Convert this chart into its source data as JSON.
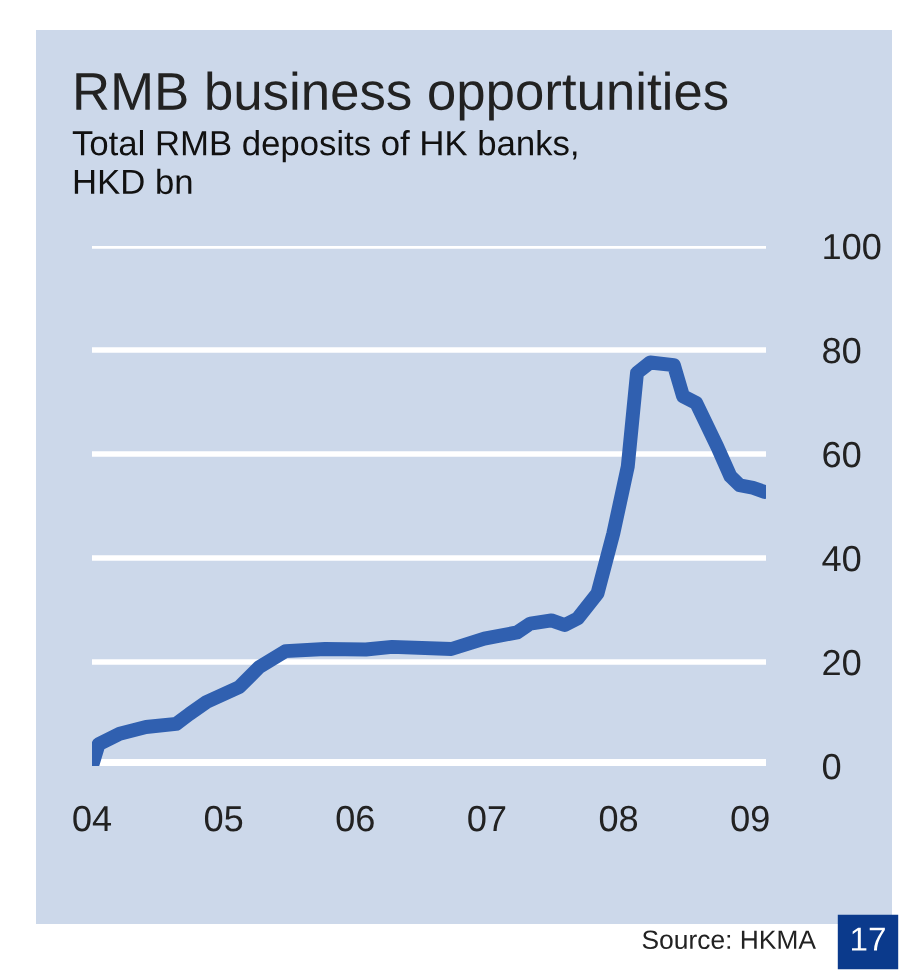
{
  "chart_data": {
    "type": "line",
    "title": "RMB business opportunities",
    "subtitle": "Total RMB deposits of HK banks,\nHKD bn",
    "x": [
      2004.0,
      2004.05,
      2004.21,
      2004.41,
      2004.64,
      2004.74,
      2004.87,
      2005.12,
      2005.27,
      2005.47,
      2005.77,
      2006.08,
      2006.28,
      2006.73,
      2006.98,
      2007.23,
      2007.33,
      2007.49,
      2007.59,
      2007.69,
      2007.84,
      2007.96,
      2008.07,
      2008.14,
      2008.24,
      2008.42,
      2008.49,
      2008.59,
      2008.75,
      2008.85,
      2008.92,
      2009.02,
      2009.11
    ],
    "series": [
      {
        "color": "#3060b0",
        "values": [
          0,
          4.2,
          6.2,
          7.5,
          8.1,
          10,
          12.3,
          15.2,
          19,
          22.1,
          22.5,
          22.4,
          22.9,
          22.5,
          24.5,
          25.7,
          27.4,
          28,
          27.1,
          28.4,
          33.2,
          44.7,
          57.6,
          75.6,
          77.6,
          77.1,
          71.1,
          69.8,
          61.4,
          55.7,
          54,
          53.5,
          52.7
        ]
      }
    ],
    "xlim": [
      2004.0,
      2009.12
    ],
    "xticks": [
      {
        "value": 2004,
        "label": "04"
      },
      {
        "value": 2005,
        "label": "05"
      },
      {
        "value": 2006,
        "label": "06"
      },
      {
        "value": 2007,
        "label": "07"
      },
      {
        "value": 2008,
        "label": "08"
      },
      {
        "value": 2009,
        "label": "09"
      }
    ],
    "ylim": [
      0,
      100
    ],
    "yticks": [
      0,
      20,
      40,
      60,
      80,
      100
    ],
    "grid": "y",
    "legend": false,
    "marker": "none",
    "line_style": "solid",
    "annotations": [
      "Source: HKMA",
      "17"
    ]
  }
}
